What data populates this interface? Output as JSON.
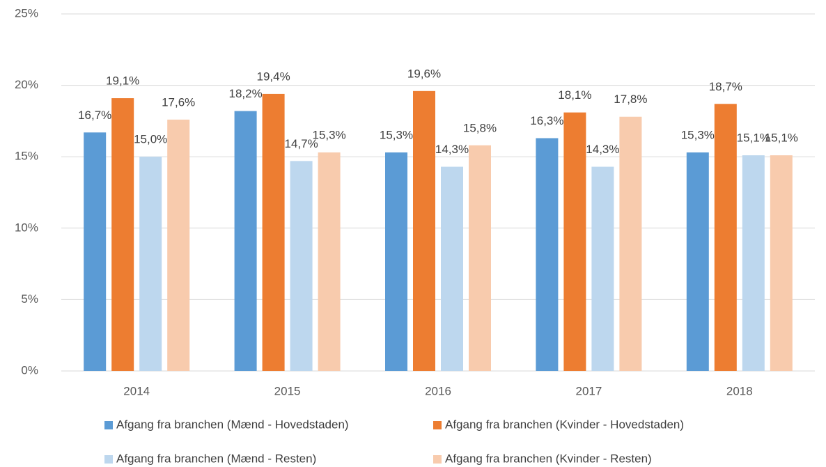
{
  "chart_data": {
    "type": "bar",
    "categories": [
      "2014",
      "2015",
      "2016",
      "2017",
      "2018"
    ],
    "series": [
      {
        "name": "Afgang fra branchen (Mænd - Hovedstaden)",
        "color": "#5b9bd5",
        "values": [
          16.7,
          18.2,
          15.3,
          16.3,
          15.3
        ],
        "value_labels": [
          "16,7%",
          "18,2%",
          "15,3%",
          "16,3%",
          "15,3%"
        ]
      },
      {
        "name": "Afgang fra branchen (Kvinder - Hovedstaden)",
        "color": "#ed7d31",
        "values": [
          19.1,
          19.4,
          19.6,
          18.1,
          18.7
        ],
        "value_labels": [
          "19,1%",
          "19,4%",
          "19,6%",
          "18,1%",
          "18,7%"
        ]
      },
      {
        "name": "Afgang fra branchen (Mænd - Resten)",
        "color": "#bdd7ee",
        "values": [
          15.0,
          14.7,
          14.3,
          14.3,
          15.1
        ],
        "value_labels": [
          "15,0%",
          "14,7%",
          "14,3%",
          "14,3%",
          "15,1%"
        ]
      },
      {
        "name": "Afgang fra branchen (Kvinder - Resten)",
        "color": "#f8cbad",
        "values": [
          17.6,
          15.3,
          15.8,
          17.8,
          15.1
        ],
        "value_labels": [
          "17,6%",
          "15,3%",
          "15,8%",
          "17,8%",
          "15,1%"
        ]
      }
    ],
    "ylim": [
      0,
      25
    ],
    "yticks": [
      {
        "value": 0,
        "label": "0%"
      },
      {
        "value": 5,
        "label": "5%"
      },
      {
        "value": 10,
        "label": "10%"
      },
      {
        "value": 15,
        "label": "15%"
      },
      {
        "value": 20,
        "label": "20%"
      },
      {
        "value": 25,
        "label": "25%"
      }
    ],
    "grid": true,
    "legend": "bottom"
  }
}
